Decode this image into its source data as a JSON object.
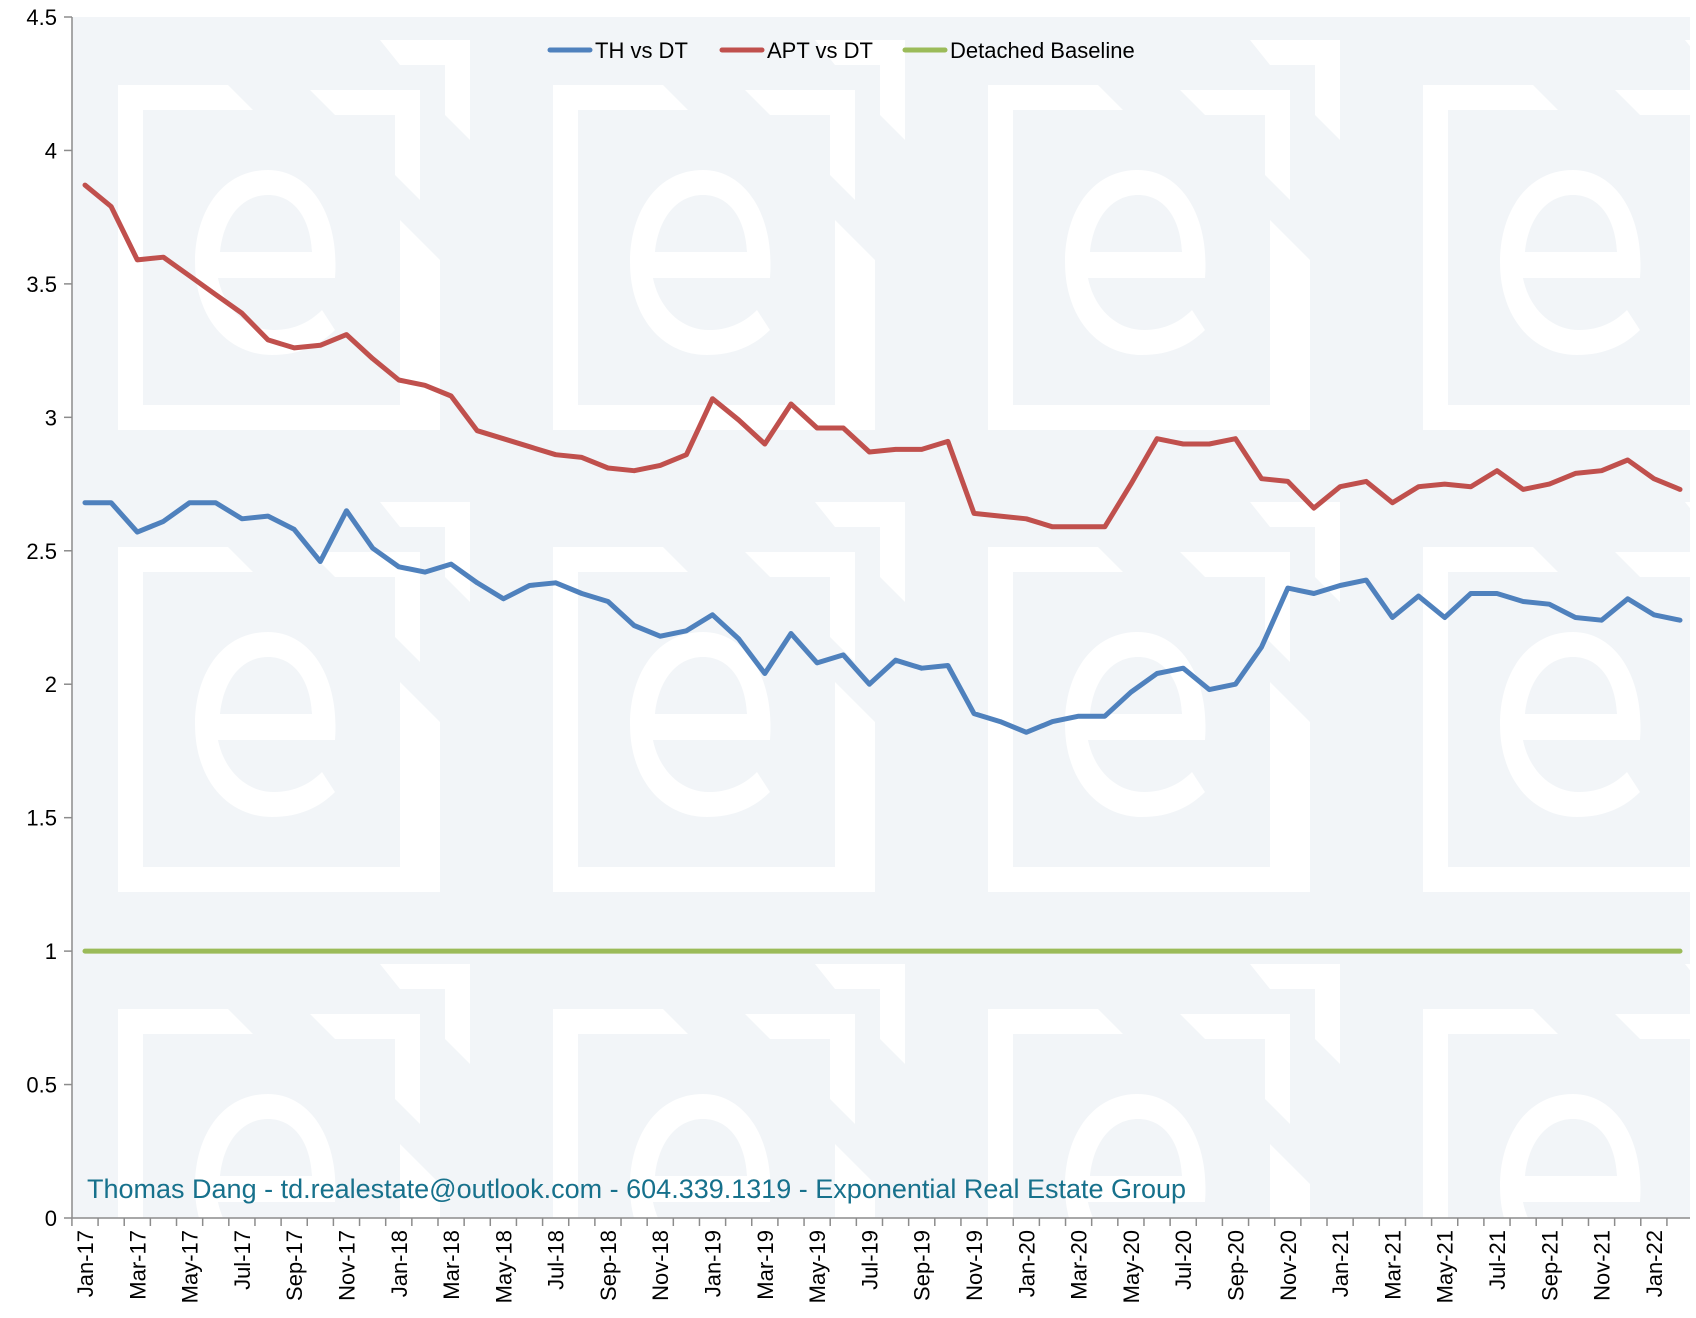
{
  "chart_data": {
    "type": "line",
    "title": "",
    "xlabel": "",
    "ylabel": "",
    "ylim": [
      0,
      4.5
    ],
    "yticks": [
      0,
      0.5,
      1,
      1.5,
      2,
      2.5,
      3,
      3.5,
      4,
      4.5
    ],
    "ytick_labels": [
      "0",
      "0.5",
      "1",
      "1.5",
      "2",
      "2.5",
      "3",
      "3.5",
      "4",
      "4.5"
    ],
    "grid": false,
    "legend_position": "top-center",
    "x": [
      "Jan-17",
      "Feb-17",
      "Mar-17",
      "Apr-17",
      "May-17",
      "Jun-17",
      "Jul-17",
      "Aug-17",
      "Sep-17",
      "Oct-17",
      "Nov-17",
      "Dec-17",
      "Jan-18",
      "Feb-18",
      "Mar-18",
      "Apr-18",
      "May-18",
      "Jun-18",
      "Jul-18",
      "Aug-18",
      "Sep-18",
      "Oct-18",
      "Nov-18",
      "Dec-18",
      "Jan-19",
      "Feb-19",
      "Mar-19",
      "Apr-19",
      "May-19",
      "Jun-19",
      "Jul-19",
      "Aug-19",
      "Sep-19",
      "Oct-19",
      "Nov-19",
      "Dec-19",
      "Jan-20",
      "Feb-20",
      "Mar-20",
      "Apr-20",
      "May-20",
      "Jun-20",
      "Jul-20",
      "Aug-20",
      "Sep-20",
      "Oct-20",
      "Nov-20",
      "Dec-20",
      "Jan-21",
      "Feb-21",
      "Mar-21",
      "Apr-21",
      "May-21",
      "Jun-21",
      "Jul-21",
      "Aug-21",
      "Sep-21",
      "Oct-21",
      "Nov-21",
      "Dec-21",
      "Jan-22",
      "Feb-22"
    ],
    "xtick_labels": [
      "Jan-17",
      "Mar-17",
      "May-17",
      "Jul-17",
      "Sep-17",
      "Nov-17",
      "Jan-18",
      "Mar-18",
      "May-18",
      "Jul-18",
      "Sep-18",
      "Nov-18",
      "Jan-19",
      "Mar-19",
      "May-19",
      "Jul-19",
      "Sep-19",
      "Nov-19",
      "Jan-20",
      "Mar-20",
      "May-20",
      "Jul-20",
      "Sep-20",
      "Nov-20",
      "Jan-21",
      "Mar-21",
      "May-21",
      "Jul-21",
      "Sep-21",
      "Nov-21",
      "Jan-22"
    ],
    "series": [
      {
        "name": "TH vs DT",
        "color": "#4F81BD",
        "values": [
          2.68,
          2.68,
          2.57,
          2.61,
          2.68,
          2.68,
          2.62,
          2.63,
          2.58,
          2.46,
          2.65,
          2.51,
          2.44,
          2.42,
          2.45,
          2.38,
          2.32,
          2.37,
          2.38,
          2.34,
          2.31,
          2.22,
          2.18,
          2.2,
          2.26,
          2.17,
          2.04,
          2.19,
          2.08,
          2.11,
          2.0,
          2.09,
          2.06,
          2.07,
          1.89,
          1.86,
          1.82,
          1.86,
          1.88,
          1.88,
          1.97,
          2.04,
          2.06,
          1.98,
          2.0,
          2.14,
          2.36,
          2.34,
          2.37,
          2.39,
          2.25,
          2.33,
          2.25,
          2.34,
          2.34,
          2.31,
          2.3,
          2.25,
          2.24,
          2.32,
          2.26,
          2.24
        ]
      },
      {
        "name": "APT vs DT",
        "color": "#C0504D",
        "values": [
          3.87,
          3.79,
          3.59,
          3.6,
          3.53,
          3.46,
          3.39,
          3.29,
          3.26,
          3.27,
          3.31,
          3.22,
          3.14,
          3.12,
          3.08,
          2.95,
          2.92,
          2.89,
          2.86,
          2.85,
          2.81,
          2.8,
          2.82,
          2.86,
          3.07,
          2.99,
          2.9,
          3.05,
          2.96,
          2.96,
          2.87,
          2.88,
          2.88,
          2.91,
          2.64,
          2.63,
          2.62,
          2.59,
          2.59,
          2.59,
          2.75,
          2.92,
          2.9,
          2.9,
          2.92,
          2.77,
          2.76,
          2.66,
          2.74,
          2.76,
          2.68,
          2.74,
          2.75,
          2.74,
          2.8,
          2.73,
          2.75,
          2.79,
          2.8,
          2.84,
          2.77,
          2.73
        ]
      },
      {
        "name": "Detached Baseline",
        "color": "#9BBB59",
        "values": [
          1,
          1,
          1,
          1,
          1,
          1,
          1,
          1,
          1,
          1,
          1,
          1,
          1,
          1,
          1,
          1,
          1,
          1,
          1,
          1,
          1,
          1,
          1,
          1,
          1,
          1,
          1,
          1,
          1,
          1,
          1,
          1,
          1,
          1,
          1,
          1,
          1,
          1,
          1,
          1,
          1,
          1,
          1,
          1,
          1,
          1,
          1,
          1,
          1,
          1,
          1,
          1,
          1,
          1,
          1,
          1,
          1,
          1,
          1,
          1,
          1,
          1
        ]
      }
    ],
    "credit_text": "Thomas Dang - td.realestate@outlook.com - 604.339.1319 - Exponential Real Estate Group",
    "credit_color": "#17718C",
    "background_color": "#F2F5F8",
    "watermark_color": "#FFFFFF",
    "axis_color": "#8C8C8C"
  }
}
